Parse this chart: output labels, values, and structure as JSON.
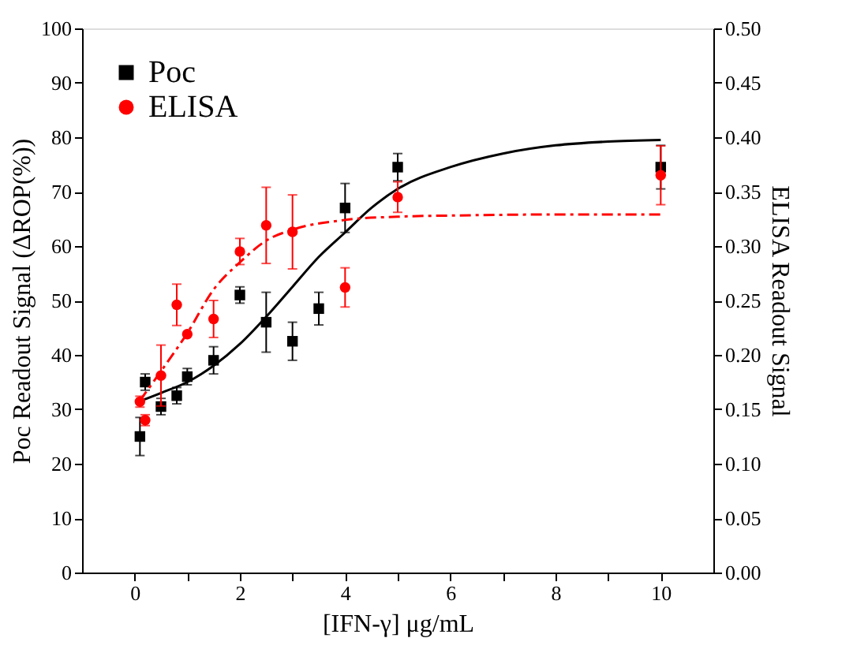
{
  "chart_data": {
    "type": "scatter",
    "xlabel": "[IFN-γ] μg/mL",
    "ylabel": "Poc Readout Signal (ΔROP(%))",
    "y2label": "ELISA Readout Signal",
    "xlim": [
      -1,
      11
    ],
    "xticks": [
      0,
      {
        "value": 1,
        "label": null
      },
      2,
      {
        "value": 3,
        "label": null
      },
      4,
      {
        "value": 5,
        "label": null
      },
      6,
      {
        "value": 7,
        "label": null
      },
      8,
      {
        "value": 9,
        "label": null
      },
      10
    ],
    "ylim": [
      0,
      100
    ],
    "yticks": [
      0,
      10,
      20,
      30,
      40,
      50,
      60,
      70,
      80,
      90,
      100
    ],
    "y2lim": [
      0,
      0.5
    ],
    "y2ticks": [
      {
        "value": 0,
        "label": "0.00"
      },
      0.05,
      {
        "value": 0.1,
        "label": "0.10"
      },
      0.15,
      {
        "value": 0.2,
        "label": "0.20"
      },
      0.25,
      {
        "value": 0.3,
        "label": "0.30"
      },
      0.35,
      {
        "value": 0.4,
        "label": "0.40"
      },
      0.45,
      {
        "value": 0.5,
        "label": "0.50"
      }
    ],
    "grid": false,
    "legend": "top left",
    "series": [
      {
        "name": "Poc",
        "marker": "square",
        "color": "#000000",
        "x": [
          0.1,
          0.2,
          0.5,
          0.8,
          1.0,
          1.5,
          2.0,
          2.5,
          3.0,
          3.5,
          4.0,
          5.0,
          10
        ],
        "values": [
          25,
          35,
          30.5,
          32.5,
          36,
          39,
          51,
          46,
          42.5,
          48.5,
          67,
          74.5,
          74.5
        ],
        "errors": [
          3.5,
          1.5,
          1.5,
          1.5,
          1.5,
          2.5,
          1.5,
          5.5,
          3.5,
          3,
          4.5,
          2.5,
          4
        ]
      },
      {
        "name": "ELISA",
        "marker": "circle",
        "color": "#ff0000",
        "axis": "y2",
        "x": [
          0.1,
          0.2,
          0.5,
          0.8,
          1.0,
          1.5,
          2.0,
          2.5,
          3.0,
          4.0,
          5.0,
          10
        ],
        "values": [
          0.157,
          0.14,
          0.181,
          0.246,
          0.219,
          0.233,
          0.295,
          0.319,
          0.313,
          0.262,
          0.345,
          0.365
        ],
        "errors": [
          0.005,
          0.005,
          0.028,
          0.019,
          null,
          0.017,
          0.012,
          0.035,
          0.034,
          0.018,
          0.014,
          0.027
        ]
      },
      {
        "type": "line",
        "marker": "none",
        "line_style": "solid",
        "color": "#000000",
        "x": [
          0.1,
          0.5,
          1,
          1.5,
          2,
          2.5,
          3,
          3.5,
          4,
          4.5,
          5,
          6,
          7,
          8,
          9,
          10
        ],
        "values": [
          31.5,
          33,
          35,
          38,
          42,
          47,
          52.5,
          58,
          62.5,
          67,
          70.5,
          74.5,
          77,
          78.5,
          79.2,
          79.5
        ]
      },
      {
        "type": "line",
        "marker": "none",
        "line_style": "dashed",
        "color": "#ff0000",
        "axis": "y2",
        "x": [
          0.1,
          0.5,
          1,
          1.5,
          2,
          2.5,
          3,
          4,
          5,
          6,
          8,
          10
        ],
        "values": [
          0.158,
          0.185,
          0.22,
          0.26,
          0.285,
          0.305,
          0.315,
          0.324,
          0.327,
          0.328,
          0.329,
          0.329
        ]
      }
    ]
  }
}
